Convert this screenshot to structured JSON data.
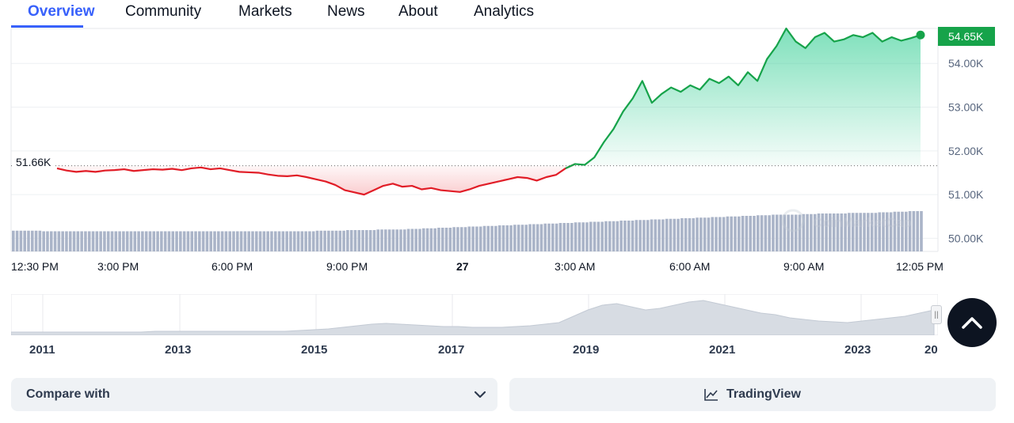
{
  "tabs": [
    "Overview",
    "Community",
    "Markets",
    "News",
    "About",
    "Analytics"
  ],
  "active_tab": "Overview",
  "chart_data": {
    "type": "area",
    "open_price_label": "51.66K",
    "current_price_label": "54.65K",
    "y_ticks": [
      "54.00K",
      "53.00K",
      "52.00K",
      "51.00K",
      "50.00K"
    ],
    "x_ticks": [
      "12:30 PM",
      "3:00 PM",
      "6:00 PM",
      "9:00 PM",
      "27",
      "3:00 AM",
      "6:00 AM",
      "9:00 AM",
      "12:05 PM"
    ],
    "ylim": [
      49700,
      54800
    ],
    "open_price": 51660,
    "series": [
      {
        "values": [
          51600,
          51550,
          51520,
          51540,
          51520,
          51550,
          51560,
          51580,
          51540,
          51560,
          51580,
          51570,
          51590,
          51560,
          51600,
          51620,
          51580,
          51600,
          51560,
          51520,
          51510,
          51500,
          51460,
          51430,
          51420,
          51440,
          51400,
          51350,
          51300,
          51220,
          51100,
          51050,
          51000,
          51100,
          51200,
          51250,
          51180,
          51200,
          51120,
          51150,
          51100,
          51080,
          51060,
          51120,
          51200,
          51250,
          51300,
          51350,
          51400,
          51380,
          51320,
          51400,
          51450,
          51600,
          51700,
          51680,
          51850,
          52200,
          52500,
          52900,
          53200,
          53600,
          53100,
          53300,
          53450,
          53350,
          53500,
          53400,
          53650,
          53550,
          53700,
          53500,
          53800,
          53600,
          54100,
          54400,
          54800,
          54500,
          54350,
          54600,
          54700,
          54500,
          54550,
          54650,
          54600,
          54700,
          54500,
          54600,
          54520,
          54580,
          54650
        ],
        "color_up": "#16c784",
        "color_down": "#ea3943"
      }
    ],
    "volume": [
      35,
      35,
      34,
      34,
      34,
      34,
      34,
      34,
      34,
      34,
      34,
      34,
      34,
      34,
      34,
      34,
      34,
      34,
      34,
      34,
      35,
      35,
      36,
      36,
      37,
      37,
      38,
      39,
      40,
      41,
      42,
      43,
      44,
      45,
      46,
      47,
      48,
      49,
      50,
      51,
      52,
      53,
      54,
      55,
      56,
      57,
      58,
      59,
      60,
      61,
      62,
      62,
      63,
      64,
      64,
      65,
      65,
      66,
      67,
      68
    ],
    "navigator_labels": [
      "2011",
      "2013",
      "2015",
      "2017",
      "2019",
      "2021",
      "2023",
      "20"
    ],
    "navigator": [
      2,
      2,
      2,
      2,
      2,
      2,
      2,
      2,
      2,
      2,
      3,
      3,
      3,
      3,
      3,
      3,
      3,
      3,
      3,
      3,
      4,
      5,
      6,
      8,
      10,
      12,
      13,
      12,
      11,
      10,
      9,
      9,
      8,
      8,
      8,
      9,
      10,
      12,
      14,
      22,
      30,
      36,
      38,
      34,
      30,
      32,
      36,
      40,
      42,
      38,
      34,
      30,
      26,
      24,
      20,
      18,
      16,
      15,
      14,
      16,
      18,
      20,
      22,
      26,
      30
    ]
  },
  "watermark": "CoinMarketCap",
  "scroll_top_icon": "chevron-up-icon",
  "compare": {
    "label": "Compare with",
    "icon": "chevron-down-icon"
  },
  "tradingview": {
    "label": "TradingView",
    "icon": "line-chart-icon"
  },
  "nav_handle_icon": "drag-handle-icon"
}
